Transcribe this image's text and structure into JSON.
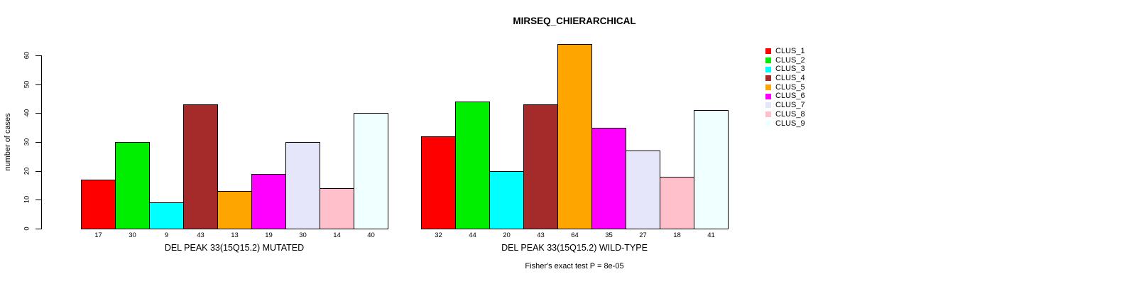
{
  "chart_data": {
    "type": "bar",
    "title": "MIRSEQ_CHIERARCHICAL",
    "ylabel": "number of cases",
    "xlabel": "",
    "ylim": [
      0,
      60
    ],
    "yticks": [
      0,
      10,
      20,
      30,
      40,
      50,
      60
    ],
    "grid": false,
    "legend_position": "right",
    "annotation": "Fisher's exact test P = 8e-05",
    "categories": [
      "DEL PEAK 33(15Q15.2) MUTATED",
      "DEL PEAK 33(15Q15.2) WILD-TYPE"
    ],
    "series": [
      {
        "name": "CLUS_1",
        "color": "#FF0000",
        "values": [
          17,
          32
        ]
      },
      {
        "name": "CLUS_2",
        "color": "#00EE00",
        "values": [
          30,
          44
        ]
      },
      {
        "name": "CLUS_3",
        "color": "#00FFFF",
        "values": [
          9,
          20
        ]
      },
      {
        "name": "CLUS_4",
        "color": "#A52A2A",
        "values": [
          43,
          43
        ]
      },
      {
        "name": "CLUS_5",
        "color": "#FFA500",
        "values": [
          13,
          64
        ]
      },
      {
        "name": "CLUS_6",
        "color": "#FF00FF",
        "values": [
          19,
          35
        ]
      },
      {
        "name": "CLUS_7",
        "color": "#E6E6FA",
        "values": [
          30,
          27
        ]
      },
      {
        "name": "CLUS_8",
        "color": "#FFC0CB",
        "values": [
          14,
          18
        ]
      },
      {
        "name": "CLUS_9",
        "color": "#F0FFFF",
        "values": [
          40,
          41
        ]
      }
    ],
    "bar_value_labels": true
  }
}
